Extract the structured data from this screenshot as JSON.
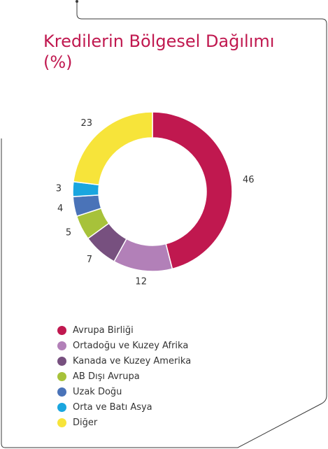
{
  "title": {
    "line1": "Kredilerin Bölgesel Dağılımı",
    "line2": "(%)"
  },
  "chart_data": {
    "type": "pie",
    "style": "donut",
    "categories": [
      "Avrupa Birliği",
      "Ortadoğu ve Kuzey Afrika",
      "Kanada ve Kuzey Amerika",
      "AB Dışı Avrupa",
      "Uzak Doğu",
      "Orta ve Batı Asya",
      "Diğer"
    ],
    "values": [
      46,
      12,
      7,
      5,
      4,
      3,
      23
    ],
    "colors": [
      "#c0184f",
      "#b280b8",
      "#77507f",
      "#a7c23a",
      "#4a73b8",
      "#1aa6df",
      "#f7e43a"
    ],
    "legend": "bottom-left"
  }
}
